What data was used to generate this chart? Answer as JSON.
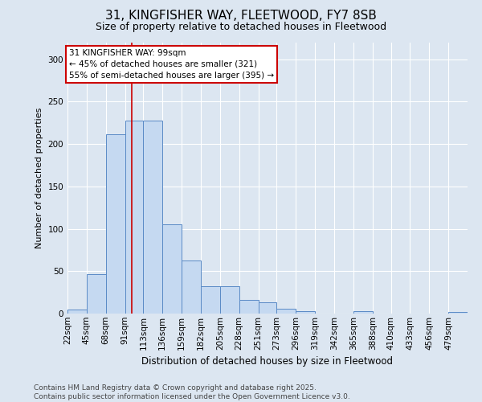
{
  "title_line1": "31, KINGFISHER WAY, FLEETWOOD, FY7 8SB",
  "title_line2": "Size of property relative to detached houses in Fleetwood",
  "xlabel": "Distribution of detached houses by size in Fleetwood",
  "ylabel": "Number of detached properties",
  "bar_color": "#c5d9f1",
  "bar_edge_color": "#5a8ac6",
  "bg_color": "#dce6f1",
  "grid_color": "#ffffff",
  "vline_color": "#cc0000",
  "annotation_text": "31 KINGFISHER WAY: 99sqm\n← 45% of detached houses are smaller (321)\n55% of semi-detached houses are larger (395) →",
  "annotation_box_color": "#ffffff",
  "annotation_edge_color": "#cc0000",
  "categories": [
    "22sqm",
    "45sqm",
    "68sqm",
    "91sqm",
    "113sqm",
    "136sqm",
    "159sqm",
    "182sqm",
    "205sqm",
    "228sqm",
    "251sqm",
    "273sqm",
    "296sqm",
    "319sqm",
    "342sqm",
    "365sqm",
    "388sqm",
    "410sqm",
    "433sqm",
    "456sqm",
    "479sqm"
  ],
  "bin_edges": [
    22,
    45,
    68,
    91,
    113,
    136,
    159,
    182,
    205,
    228,
    251,
    273,
    296,
    319,
    342,
    365,
    388,
    410,
    433,
    456,
    479,
    502
  ],
  "values": [
    5,
    46,
    211,
    228,
    228,
    105,
    63,
    32,
    32,
    16,
    13,
    6,
    3,
    0,
    0,
    3,
    0,
    0,
    0,
    0,
    2
  ],
  "ylim": [
    0,
    320
  ],
  "yticks": [
    0,
    50,
    100,
    150,
    200,
    250,
    300
  ],
  "vline_x": 99,
  "footer_text": "Contains HM Land Registry data © Crown copyright and database right 2025.\nContains public sector information licensed under the Open Government Licence v3.0.",
  "title_fontsize": 11,
  "subtitle_fontsize": 9,
  "axis_fontsize": 7.5,
  "footer_fontsize": 6.5,
  "annot_fontsize": 7.5
}
